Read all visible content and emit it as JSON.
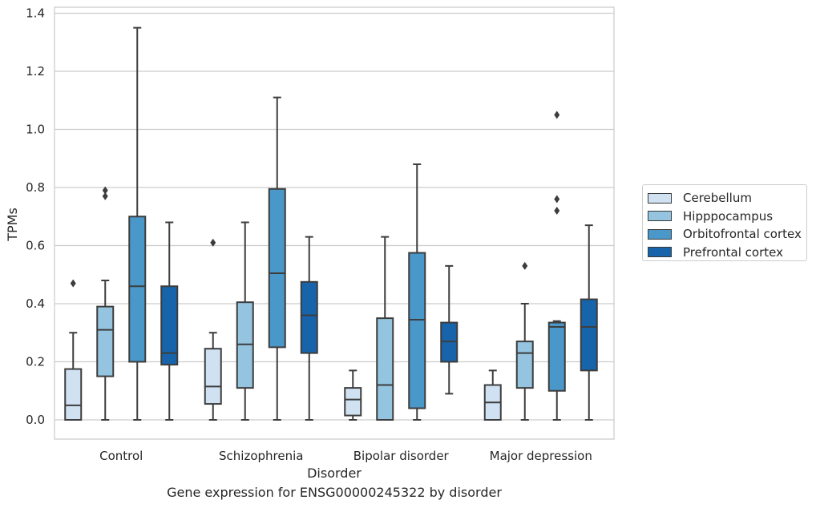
{
  "chart_data": {
    "type": "box",
    "xlabel": "Disorder",
    "ylabel": "TPMs",
    "caption": "Gene expression for ENSG00000245322 by disorder",
    "ylim": [
      -0.065,
      1.42
    ],
    "yticks": [
      "0.0",
      "0.2",
      "0.4",
      "0.6",
      "0.8",
      "1.0",
      "1.2",
      "1.4"
    ],
    "ytick_values": [
      0.0,
      0.2,
      0.4,
      0.6,
      0.8,
      1.0,
      1.2,
      1.4
    ],
    "grid": true,
    "legend_position": "right",
    "categories": [
      "Control",
      "Schizophrenia",
      "Bipolar disorder",
      "Major depression"
    ],
    "series": [
      {
        "name": "Cerebellum",
        "color": "#d0e1f2",
        "boxes": [
          {
            "whisker_low": 0.0,
            "q1": 0.0,
            "median": 0.05,
            "q3": 0.175,
            "whisker_high": 0.3,
            "outliers": [
              0.47
            ]
          },
          {
            "whisker_low": 0.0,
            "q1": 0.055,
            "median": 0.115,
            "q3": 0.245,
            "whisker_high": 0.3,
            "outliers": [
              0.61
            ]
          },
          {
            "whisker_low": 0.0,
            "q1": 0.015,
            "median": 0.07,
            "q3": 0.11,
            "whisker_high": 0.17,
            "outliers": []
          },
          {
            "whisker_low": 0.0,
            "q1": 0.0,
            "median": 0.06,
            "q3": 0.12,
            "whisker_high": 0.17,
            "outliers": []
          }
        ]
      },
      {
        "name": "Hipppocampus",
        "color": "#94c4df",
        "boxes": [
          {
            "whisker_low": 0.0,
            "q1": 0.15,
            "median": 0.31,
            "q3": 0.39,
            "whisker_high": 0.48,
            "outliers": [
              0.77,
              0.79
            ]
          },
          {
            "whisker_low": 0.0,
            "q1": 0.11,
            "median": 0.26,
            "q3": 0.405,
            "whisker_high": 0.68,
            "outliers": []
          },
          {
            "whisker_low": 0.0,
            "q1": 0.0,
            "median": 0.12,
            "q3": 0.35,
            "whisker_high": 0.63,
            "outliers": []
          },
          {
            "whisker_low": 0.0,
            "q1": 0.11,
            "median": 0.23,
            "q3": 0.27,
            "whisker_high": 0.4,
            "outliers": [
              0.53
            ]
          }
        ]
      },
      {
        "name": "Orbitofrontal cortex",
        "color": "#4a98c9",
        "boxes": [
          {
            "whisker_low": 0.0,
            "q1": 0.2,
            "median": 0.46,
            "q3": 0.7,
            "whisker_high": 1.35,
            "outliers": []
          },
          {
            "whisker_low": 0.0,
            "q1": 0.25,
            "median": 0.505,
            "q3": 0.795,
            "whisker_high": 1.11,
            "outliers": []
          },
          {
            "whisker_low": 0.0,
            "q1": 0.04,
            "median": 0.345,
            "q3": 0.575,
            "whisker_high": 0.88,
            "outliers": []
          },
          {
            "whisker_low": 0.0,
            "q1": 0.1,
            "median": 0.32,
            "q3": 0.335,
            "whisker_high": 0.34,
            "outliers": [
              0.72,
              0.76,
              1.05
            ]
          }
        ]
      },
      {
        "name": "Prefrontal cortex",
        "color": "#1764ab",
        "boxes": [
          {
            "whisker_low": 0.0,
            "q1": 0.19,
            "median": 0.23,
            "q3": 0.46,
            "whisker_high": 0.68,
            "outliers": []
          },
          {
            "whisker_low": 0.0,
            "q1": 0.23,
            "median": 0.36,
            "q3": 0.475,
            "whisker_high": 0.63,
            "outliers": []
          },
          {
            "whisker_low": 0.09,
            "q1": 0.2,
            "median": 0.27,
            "q3": 0.335,
            "whisker_high": 0.53,
            "outliers": []
          },
          {
            "whisker_low": 0.0,
            "q1": 0.17,
            "median": 0.32,
            "q3": 0.415,
            "whisker_high": 0.67,
            "outliers": []
          }
        ]
      }
    ]
  }
}
